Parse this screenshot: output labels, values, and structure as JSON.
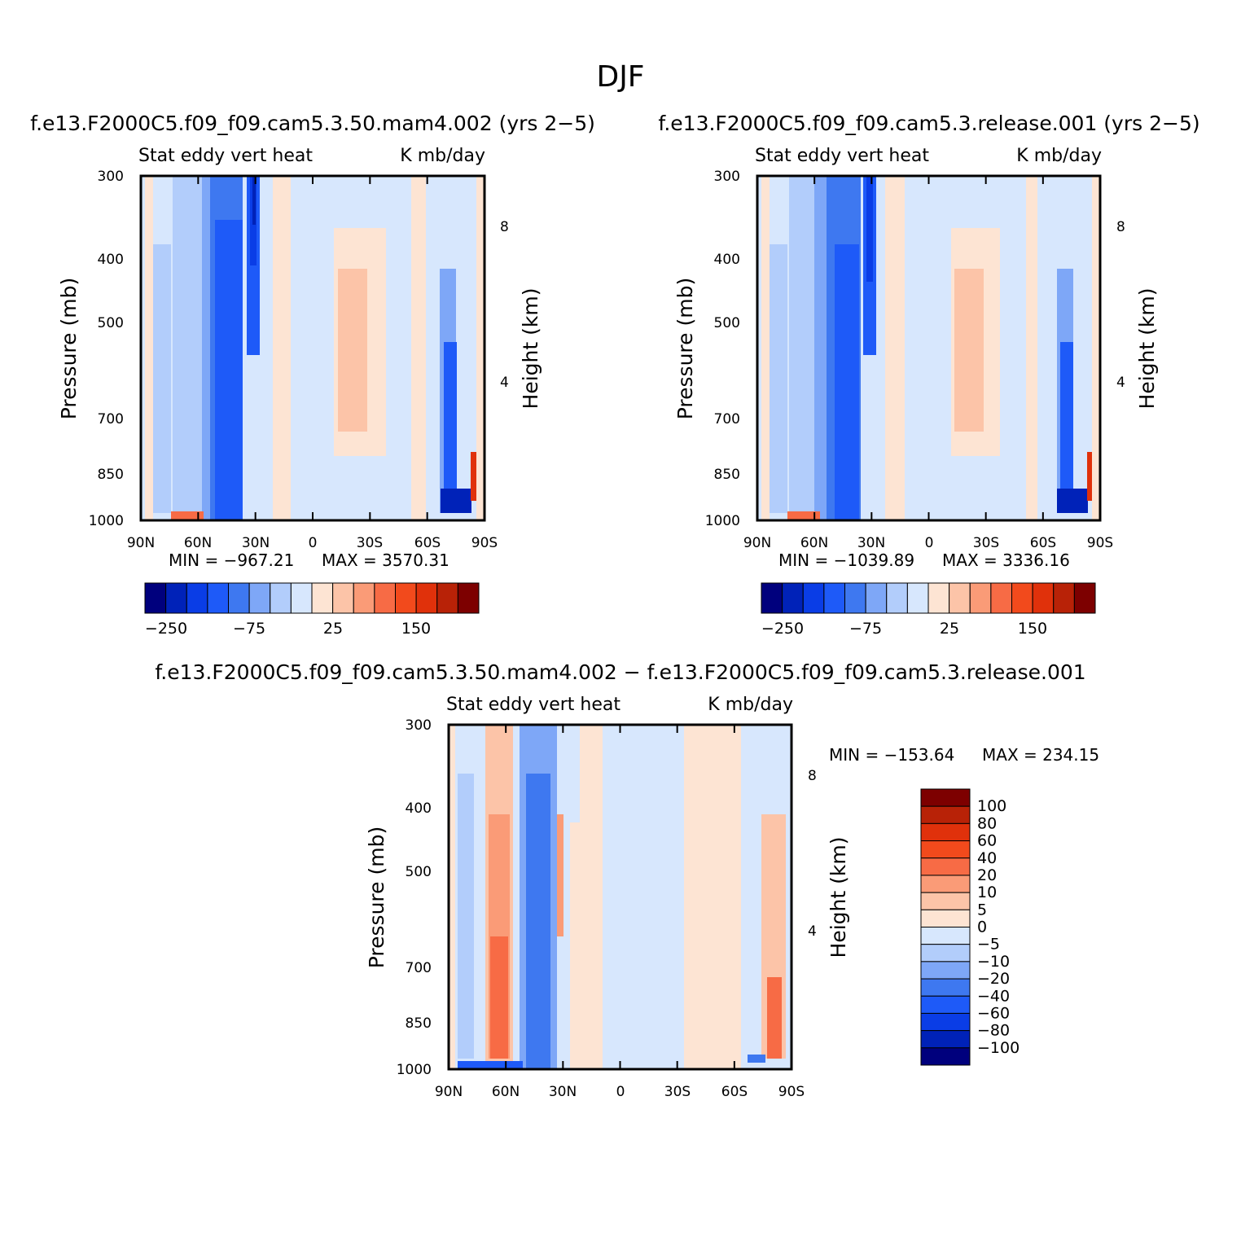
{
  "figure": {
    "title": "DJF"
  },
  "chart_data": [
    {
      "type": "heatmap",
      "title": "f.e13.F2000C5.f09_f09.cam5.3.50.mam4.002 (yrs 2−5)",
      "left_label": "Stat eddy vert heat",
      "right_label": "K mb/day",
      "ylabel": "Pressure (mb)",
      "y2label": "Height (km)",
      "xticks": [
        "90N",
        "60N",
        "30N",
        "0",
        "30S",
        "60S",
        "90S"
      ],
      "yticks": [
        300,
        400,
        500,
        700,
        850,
        1000
      ],
      "y2ticks": [
        "8",
        "4"
      ],
      "ylim": [
        1000,
        300
      ],
      "min_text": "MIN = −967.21",
      "max_text": "MAX = 3570.31",
      "colorbar": {
        "orientation": "horizontal",
        "tick_labels": [
          "−250",
          "−75",
          "25",
          "150"
        ]
      }
    },
    {
      "type": "heatmap",
      "title": "f.e13.F2000C5.f09_f09.cam5.3.release.001 (yrs 2−5)",
      "left_label": "Stat eddy vert heat",
      "right_label": "K mb/day",
      "ylabel": "Pressure (mb)",
      "y2label": "Height (km)",
      "xticks": [
        "90N",
        "60N",
        "30N",
        "0",
        "30S",
        "60S",
        "90S"
      ],
      "yticks": [
        300,
        400,
        500,
        700,
        850,
        1000
      ],
      "y2ticks": [
        "8",
        "4"
      ],
      "ylim": [
        1000,
        300
      ],
      "min_text": "MIN = −1039.89",
      "max_text": "MAX = 3336.16",
      "colorbar": {
        "orientation": "horizontal",
        "tick_labels": [
          "−250",
          "−75",
          "25",
          "150"
        ]
      }
    },
    {
      "type": "heatmap",
      "title": "f.e13.F2000C5.f09_f09.cam5.3.50.mam4.002 − f.e13.F2000C5.f09_f09.cam5.3.release.001",
      "left_label": "Stat eddy vert heat",
      "right_label": "K mb/day",
      "ylabel": "Pressure (mb)",
      "y2label": "Height (km)",
      "xticks": [
        "90N",
        "60N",
        "30N",
        "0",
        "30S",
        "60S",
        "90S"
      ],
      "yticks": [
        300,
        400,
        500,
        700,
        850,
        1000
      ],
      "y2ticks": [
        "8",
        "4"
      ],
      "ylim": [
        1000,
        300
      ],
      "min_text": "MIN = −153.64",
      "max_text": "MAX = 234.15",
      "colorbar": {
        "orientation": "vertical",
        "tick_labels": [
          "100",
          "80",
          "60",
          "40",
          "20",
          "10",
          "5",
          "0",
          "−5",
          "−10",
          "−20",
          "−40",
          "−60",
          "−80",
          "−100"
        ]
      }
    }
  ],
  "palette": [
    "#00007d",
    "#0022b8",
    "#0a3de6",
    "#1e5af8",
    "#3e78f0",
    "#7ea7f7",
    "#b2cdfb",
    "#d7e7fd",
    "#fde4d3",
    "#fcc4a8",
    "#fa9b77",
    "#f76b45",
    "#f24a1c",
    "#e0310b",
    "#b82207",
    "#7d0000"
  ]
}
